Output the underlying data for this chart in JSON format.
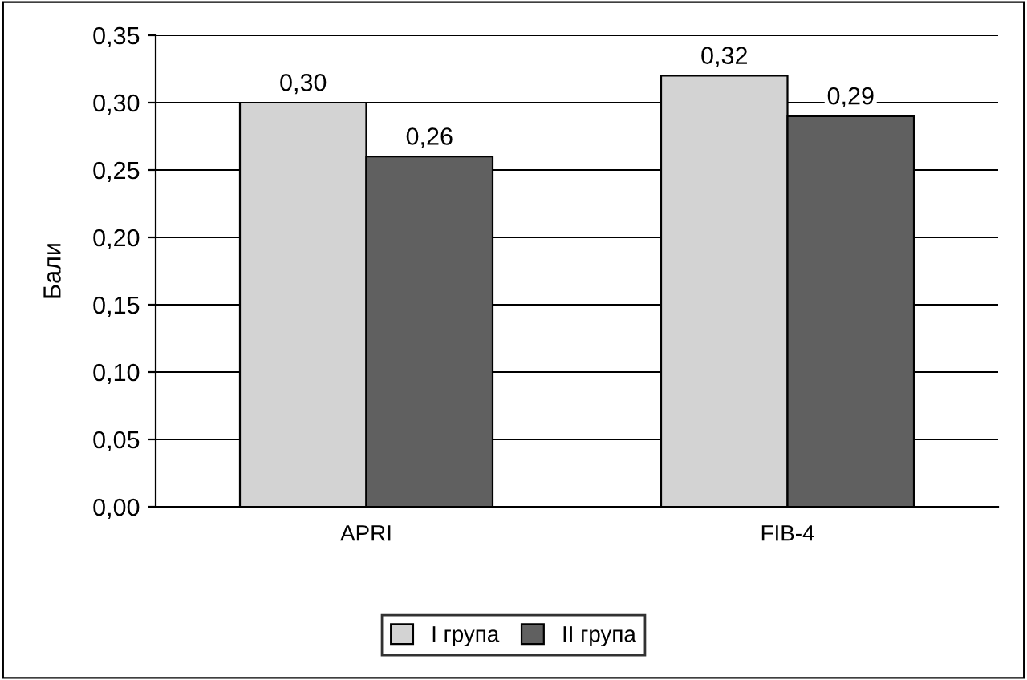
{
  "chart_data": {
    "type": "bar",
    "ylabel": "Бали",
    "categories": [
      "APRI",
      "FIB-4"
    ],
    "series": [
      {
        "name": "I група",
        "color": "#d3d3d3",
        "values": [
          0.3,
          0.32
        ],
        "value_labels": [
          "0,30",
          "0,32"
        ]
      },
      {
        "name": "II група",
        "color": "#606060",
        "values": [
          0.26,
          0.29
        ],
        "value_labels": [
          "0,26",
          "0,29"
        ]
      }
    ],
    "ylim": [
      0,
      0.35
    ],
    "yticks": [
      {
        "value": 0,
        "label": "0,00"
      },
      {
        "value": 0.05,
        "label": "0,05"
      },
      {
        "value": 0.1,
        "label": "0,10"
      },
      {
        "value": 0.15,
        "label": "0,15"
      },
      {
        "value": 0.2,
        "label": "0,20"
      },
      {
        "value": 0.25,
        "label": "0,25"
      },
      {
        "value": 0.3,
        "label": "0,30"
      },
      {
        "value": 0.35,
        "label": "0,35"
      }
    ],
    "grid": "y",
    "legend": "bottom"
  }
}
